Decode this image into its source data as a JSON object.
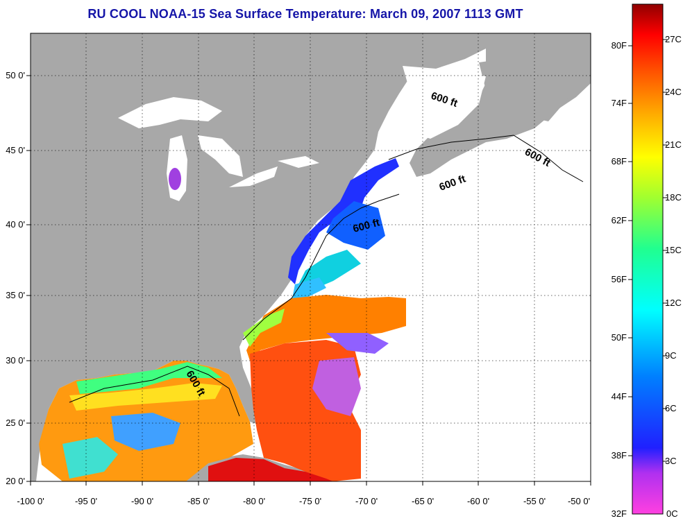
{
  "title": "RU COOL  NOAA-15  Sea Surface Temperature:  March 09, 2007 1113 GMT",
  "map": {
    "lon_labels": [
      "-100 0'",
      "-95 0'",
      "-90 0'",
      "-85 0'",
      "-80 0'",
      "-75 0'",
      "-70 0'",
      "-65 0'",
      "-60 0'",
      "-55 0'",
      "-50 0'"
    ],
    "lat_labels": [
      "50 0'",
      "45 0'",
      "40 0'",
      "35 0'",
      "30 0'",
      "25 0'",
      "20 0'"
    ],
    "lon_range": [
      -100,
      -50
    ],
    "lat_range": [
      20,
      52.5
    ],
    "isobath_label": "600 ft",
    "land_color": "#a8a8a8",
    "no_data_color": "#ffffff"
  },
  "colorbar": {
    "fahrenheit_labels": [
      "80F",
      "74F",
      "68F",
      "62F",
      "56F",
      "50F",
      "44F",
      "38F",
      "32F"
    ],
    "celsius_labels": [
      "27C",
      "24C",
      "21C",
      "18C",
      "15C",
      "12C",
      "9C",
      "6C",
      "3C",
      "0C"
    ],
    "range_c": [
      0,
      28.6
    ]
  }
}
